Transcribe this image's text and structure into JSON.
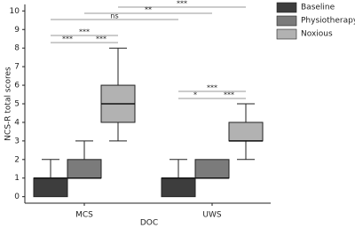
{
  "chart_data": {
    "type": "box",
    "x_label": "DOC",
    "y_label": "NCS-R total scores",
    "categories": [
      "MCS",
      "UWS"
    ],
    "series": [
      {
        "name": "Baseline",
        "color": "#3d3d3d",
        "values": [
          {
            "min": 0,
            "q1": 0,
            "median": 1,
            "q3": 1,
            "max": 2
          },
          {
            "min": 0,
            "q1": 0,
            "median": 1,
            "q3": 1,
            "max": 2
          }
        ]
      },
      {
        "name": "Physiotherapy",
        "color": "#7b7b7b",
        "values": [
          {
            "min": 1,
            "q1": 1,
            "median": 1,
            "q3": 2,
            "max": 3
          },
          {
            "min": 1,
            "q1": 1,
            "median": 1,
            "q3": 2,
            "max": 2
          }
        ]
      },
      {
        "name": "Noxious",
        "color": "#b2b2b2",
        "values": [
          {
            "min": 3,
            "q1": 4,
            "median": 5,
            "q3": 6,
            "max": 8
          },
          {
            "min": 2,
            "q1": 3,
            "median": 3,
            "q3": 4,
            "max": 5
          }
        ]
      }
    ],
    "ylim": [
      -0.35,
      10.35
    ],
    "yticks": [
      0,
      1,
      2,
      3,
      4,
      5,
      6,
      7,
      8,
      9,
      10
    ],
    "annotations": [
      "***",
      "**",
      "ns",
      "***",
      "***",
      "***",
      "***",
      "*",
      "***"
    ],
    "legend": "upper right"
  }
}
